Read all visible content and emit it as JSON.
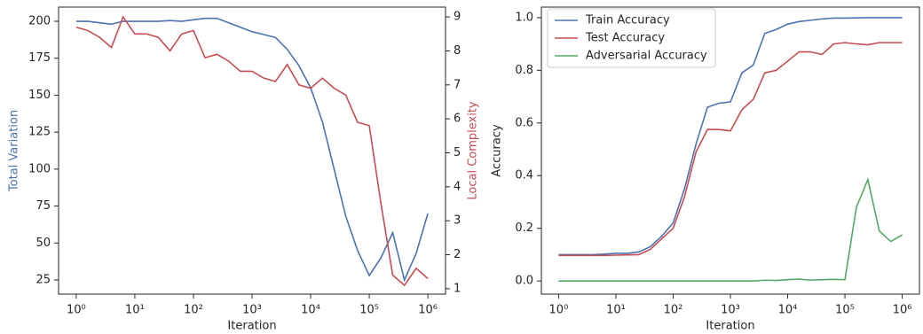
{
  "chart_data": [
    {
      "type": "line",
      "xlabel": "Iteration",
      "ylabel": "Total Variation",
      "y2label": "Local Complexity",
      "ylabel_color": "#4c72b0",
      "y2label_color": "#c44e52",
      "xscale": "log",
      "x": [
        1,
        1.58,
        2.51,
        3.98,
        6.31,
        10,
        15.8,
        25.1,
        39.8,
        63.1,
        100,
        158,
        251,
        398,
        631,
        1000,
        1585,
        2512,
        3981,
        6310,
        10000,
        15849,
        25119,
        39811,
        63096,
        100000,
        158489,
        251189,
        398107,
        630957,
        1000000
      ],
      "series": [
        {
          "name": "Total Variation",
          "color": "#4c72b0",
          "values": [
            200,
            200,
            199,
            198,
            200,
            200,
            200,
            200,
            200.5,
            200,
            201,
            202,
            202,
            199,
            196,
            193,
            191,
            189,
            181,
            170,
            155,
            132,
            100,
            68,
            45,
            28,
            40,
            57,
            25,
            43,
            70
          ]
        },
        {
          "name": "Local Complexity",
          "color": "#c44e52",
          "axis": "y2",
          "values": [
            8.7,
            8.6,
            8.4,
            8.1,
            9.0,
            8.5,
            8.5,
            8.4,
            8.0,
            8.5,
            8.6,
            7.8,
            7.9,
            7.7,
            7.4,
            7.4,
            7.2,
            7.1,
            7.6,
            7.0,
            6.9,
            7.2,
            6.9,
            6.7,
            5.9,
            5.8,
            3.5,
            1.4,
            1.1,
            1.6,
            1.3
          ]
        }
      ],
      "xlim": [
        0.5,
        2000000
      ],
      "xticks": [
        {
          "value": 1,
          "label": "10⁰"
        },
        {
          "value": 10,
          "label": "10¹"
        },
        {
          "value": 100,
          "label": "10²"
        },
        {
          "value": 1000,
          "label": "10³"
        },
        {
          "value": 10000,
          "label": "10⁴"
        },
        {
          "value": 100000,
          "label": "10⁵"
        },
        {
          "value": 1000000,
          "label": "10⁶"
        }
      ],
      "ylim": [
        15.4,
        209.6
      ],
      "yticks": [
        25,
        50,
        75,
        100,
        125,
        150,
        175,
        200
      ],
      "y2lim": [
        0.84,
        9.29
      ],
      "y2ticks": [
        1,
        2,
        3,
        4,
        5,
        6,
        7,
        8,
        9
      ]
    },
    {
      "type": "line",
      "xlabel": "Iteration",
      "ylabel": "Accuracy",
      "xscale": "log",
      "legend": "upper left",
      "x": [
        1,
        1.58,
        2.51,
        3.98,
        6.31,
        10,
        15.8,
        25.1,
        39.8,
        63.1,
        100,
        158,
        251,
        398,
        631,
        1000,
        1585,
        2512,
        3981,
        6310,
        10000,
        15849,
        25119,
        39811,
        63096,
        100000,
        158489,
        251189,
        398107,
        630957,
        1000000
      ],
      "series": [
        {
          "name": "Train Accuracy",
          "color": "#4c72b0",
          "values": [
            0.1,
            0.1,
            0.1,
            0.1,
            0.102,
            0.105,
            0.105,
            0.11,
            0.13,
            0.17,
            0.22,
            0.35,
            0.52,
            0.66,
            0.675,
            0.68,
            0.79,
            0.82,
            0.94,
            0.955,
            0.975,
            0.985,
            0.99,
            0.995,
            0.998,
            0.998,
            0.999,
            1.0,
            1.0,
            1.0,
            1.0
          ]
        },
        {
          "name": "Test Accuracy",
          "color": "#c44e52",
          "values": [
            0.097,
            0.097,
            0.097,
            0.097,
            0.097,
            0.098,
            0.099,
            0.1,
            0.12,
            0.16,
            0.2,
            0.32,
            0.49,
            0.575,
            0.575,
            0.57,
            0.65,
            0.69,
            0.79,
            0.8,
            0.835,
            0.87,
            0.87,
            0.86,
            0.9,
            0.905,
            0.9,
            0.897,
            0.905,
            0.905,
            0.905
          ]
        },
        {
          "name": "Adversarial Accuracy",
          "color": "#55a868",
          "values": [
            0,
            0,
            0,
            0,
            0,
            0,
            0,
            0,
            0,
            0,
            0,
            0,
            0,
            0,
            0,
            0,
            0,
            0,
            0.003,
            0.002,
            0.005,
            0.007,
            0.003,
            0.005,
            0.006,
            0.005,
            0.28,
            0.385,
            0.19,
            0.15,
            0.175
          ]
        }
      ],
      "xlim": [
        0.5,
        2000000
      ],
      "xticks": [
        {
          "value": 1,
          "label": "10⁰"
        },
        {
          "value": 10,
          "label": "10¹"
        },
        {
          "value": 100,
          "label": "10²"
        },
        {
          "value": 1000,
          "label": "10³"
        },
        {
          "value": 10000,
          "label": "10⁴"
        },
        {
          "value": 100000,
          "label": "10⁵"
        },
        {
          "value": 1000000,
          "label": "10⁶"
        }
      ],
      "ylim": [
        -0.05,
        1.04
      ],
      "yticks": [
        {
          "value": 0,
          "label": "0.0"
        },
        {
          "value": 0.2,
          "label": "0.2"
        },
        {
          "value": 0.4,
          "label": "0.4"
        },
        {
          "value": 0.6,
          "label": "0.6"
        },
        {
          "value": 0.8,
          "label": "0.8"
        },
        {
          "value": 1,
          "label": "1.0"
        }
      ]
    }
  ]
}
